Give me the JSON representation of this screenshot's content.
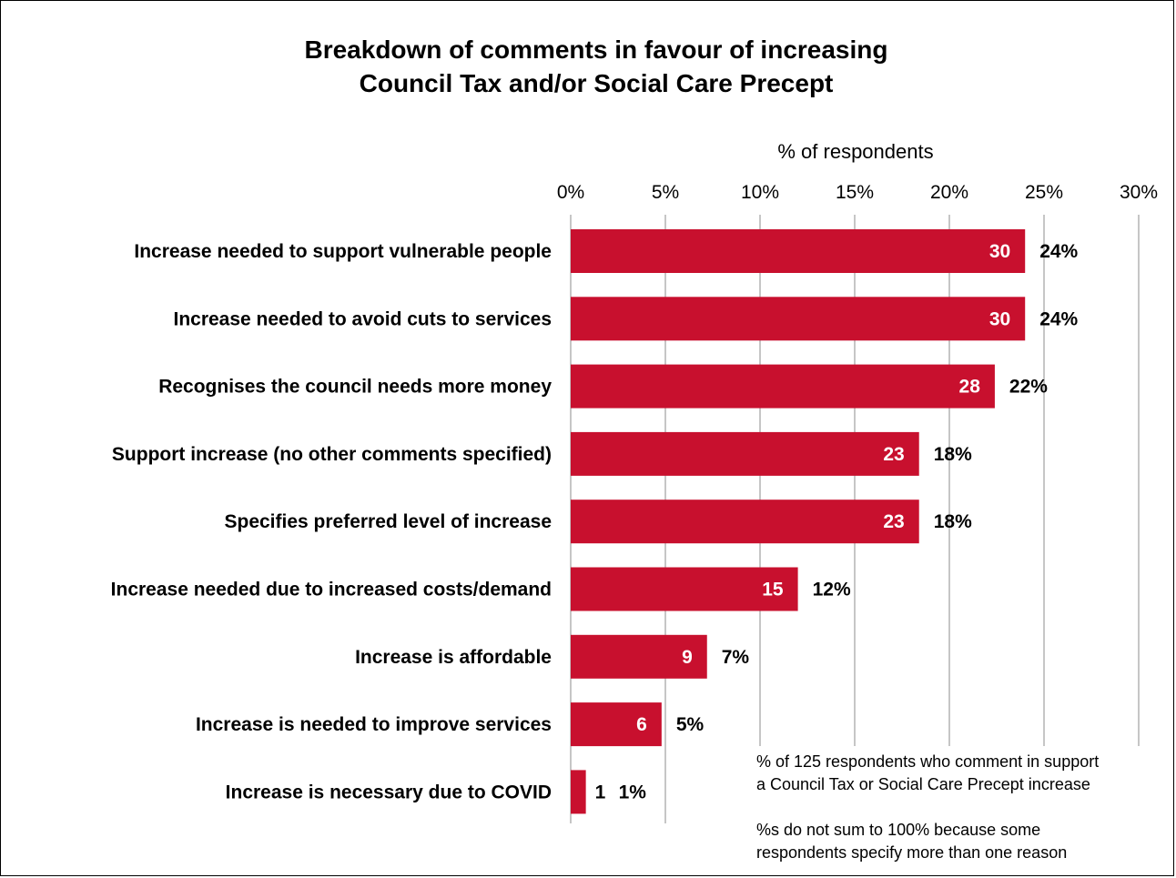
{
  "chart_data": {
    "type": "bar",
    "orientation": "horizontal",
    "title": [
      "Breakdown of comments in favour of increasing",
      "Council Tax and/or Social Care Precept"
    ],
    "xlabel": "% of respondents",
    "xlim": [
      0,
      30
    ],
    "ticks": [
      0,
      5,
      10,
      15,
      20,
      25,
      30
    ],
    "tick_labels": [
      "0%",
      "5%",
      "10%",
      "15%",
      "20%",
      "25%",
      "30%"
    ],
    "grid": "vertical",
    "bar_color": "#c8102e",
    "categories": [
      "Increase needed to support vulnerable people",
      "Increase needed to avoid cuts to services",
      "Recognises the council needs more money",
      "Support increase (no other comments specified)",
      "Specifies preferred level of increase",
      "Increase needed due to increased costs/demand",
      "Increase is affordable",
      "Increase is needed to improve services",
      "Increase is necessary due to COVID"
    ],
    "values": [
      24,
      24,
      22.4,
      18.4,
      18.4,
      12,
      7.2,
      4.8,
      0.8
    ],
    "counts": [
      "30",
      "30",
      "28",
      "23",
      "23",
      "15",
      "9",
      "6",
      "1"
    ],
    "pct_labels": [
      "24%",
      "24%",
      "22%",
      "18%",
      "18%",
      "12%",
      "7%",
      "5%",
      "1%"
    ],
    "notes": [
      "% of 125 respondents who comment in support",
      "a Council Tax  or Social Care Precept increase",
      "",
      "%s do not sum to 100% because some",
      "respondents specify more than one reason"
    ]
  }
}
